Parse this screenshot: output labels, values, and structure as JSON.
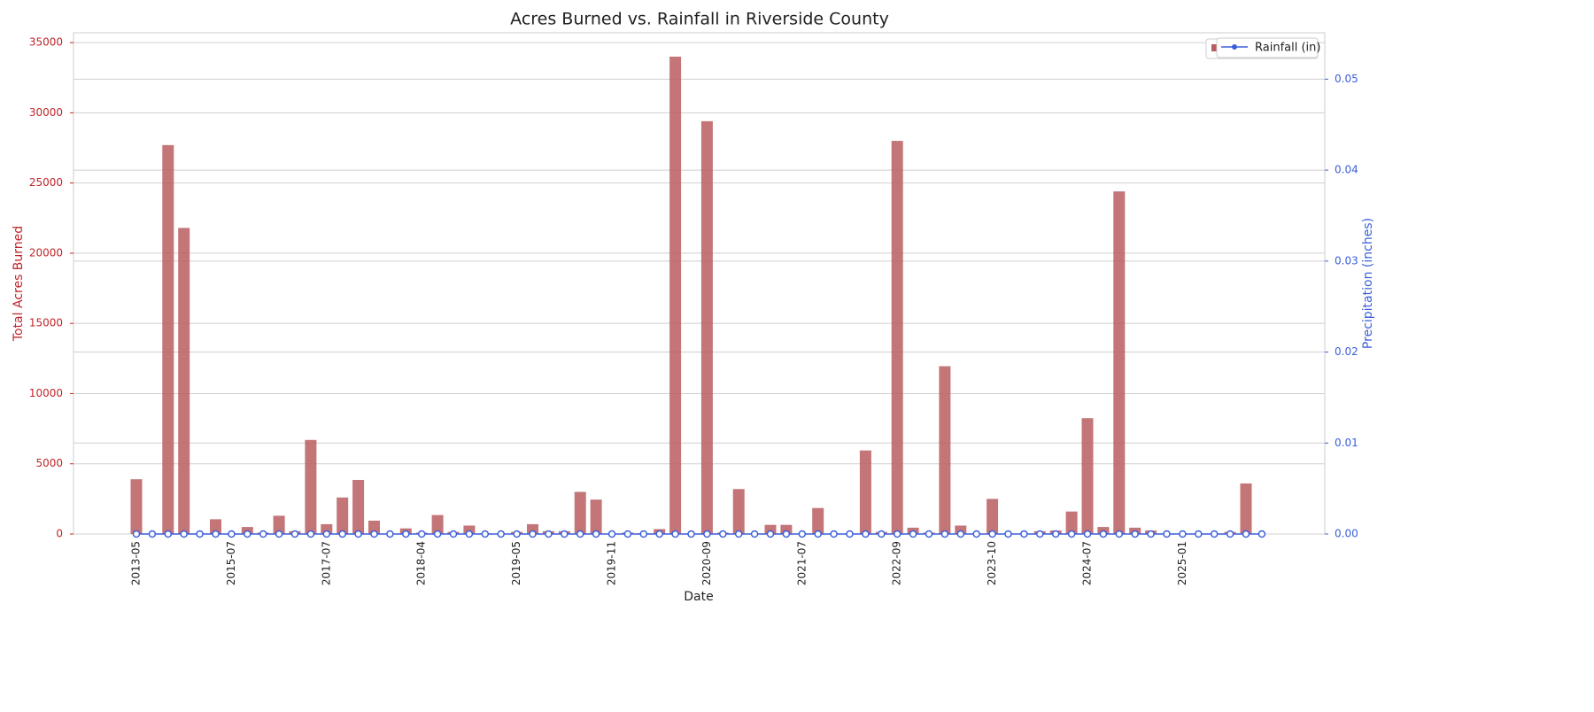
{
  "chart_data": {
    "type": "bar-line",
    "title": "Acres Burned vs. Rainfall in Riverside County",
    "xlabel": "Date",
    "ylabel": "Total Acres Burned",
    "y2label": "Precipitation (inches)",
    "categories": [
      "2013-05",
      null,
      null,
      null,
      null,
      null,
      "2015-07",
      null,
      null,
      null,
      null,
      null,
      "2017-07",
      null,
      null,
      null,
      null,
      null,
      "2018-04",
      null,
      null,
      null,
      null,
      null,
      "2019-05",
      null,
      null,
      null,
      null,
      null,
      "2019-11",
      null,
      null,
      null,
      null,
      null,
      "2020-09",
      null,
      null,
      null,
      null,
      null,
      "2021-07",
      null,
      null,
      null,
      null,
      null,
      "2022-09",
      null,
      null,
      null,
      null,
      null,
      "2023-10",
      null,
      null,
      null,
      null,
      null,
      "2024-07",
      null,
      null,
      null,
      null,
      null,
      "2025-01",
      null,
      null,
      null,
      null,
      null
    ],
    "series": [
      {
        "type": "bar",
        "color": "#b85d5f",
        "values": [
          3900,
          0,
          27700,
          21800,
          0,
          1050,
          0,
          500,
          100,
          1300,
          200,
          6700,
          700,
          2600,
          3850,
          950,
          0,
          400,
          100,
          1350,
          150,
          600,
          50,
          0,
          150,
          700,
          200,
          200,
          3000,
          2450,
          0,
          100,
          50,
          350,
          34000,
          0,
          29400,
          100,
          3200,
          0,
          650,
          650,
          0,
          1850,
          0,
          0,
          5950,
          150,
          28000,
          450,
          100,
          11950,
          600,
          0,
          2500,
          0,
          0,
          200,
          250,
          1600,
          8250,
          500,
          24400,
          450,
          250,
          0,
          0,
          0,
          0,
          150,
          3600,
          0
        ]
      },
      {
        "type": "line",
        "name": "Rainfall (in)",
        "color": "#3b5fd9",
        "axis": "y2",
        "values": [
          0,
          0,
          0,
          0,
          0,
          0,
          0,
          0,
          0,
          0,
          0,
          0,
          0,
          0,
          0,
          0,
          0,
          0,
          0,
          0,
          0,
          0,
          0,
          0,
          0,
          0,
          0,
          0,
          0,
          0,
          0,
          0,
          0,
          0,
          0,
          0,
          0,
          0,
          0,
          0,
          0,
          0,
          0,
          0,
          0,
          0,
          0,
          0,
          0,
          0,
          0,
          0,
          0,
          0,
          0,
          0,
          0,
          0,
          0,
          0,
          0,
          0,
          0,
          0,
          0,
          0,
          0,
          0,
          0,
          0,
          0,
          0
        ]
      }
    ],
    "ylim": [
      0,
      35700
    ],
    "yticks": [
      0,
      5000,
      10000,
      15000,
      20000,
      25000,
      30000,
      35000
    ],
    "y2lim": [
      0,
      0.0551
    ],
    "y2ticks": [
      0.0,
      0.01,
      0.02,
      0.03,
      0.04,
      0.05
    ],
    "y2tick_labels": [
      "0.00",
      "0.01",
      "0.02",
      "0.03",
      "0.04",
      "0.05"
    ],
    "grid": true,
    "legend": "upper right",
    "ylabel_color": "#c0262b",
    "y2label_color": "#3b5fd9"
  }
}
